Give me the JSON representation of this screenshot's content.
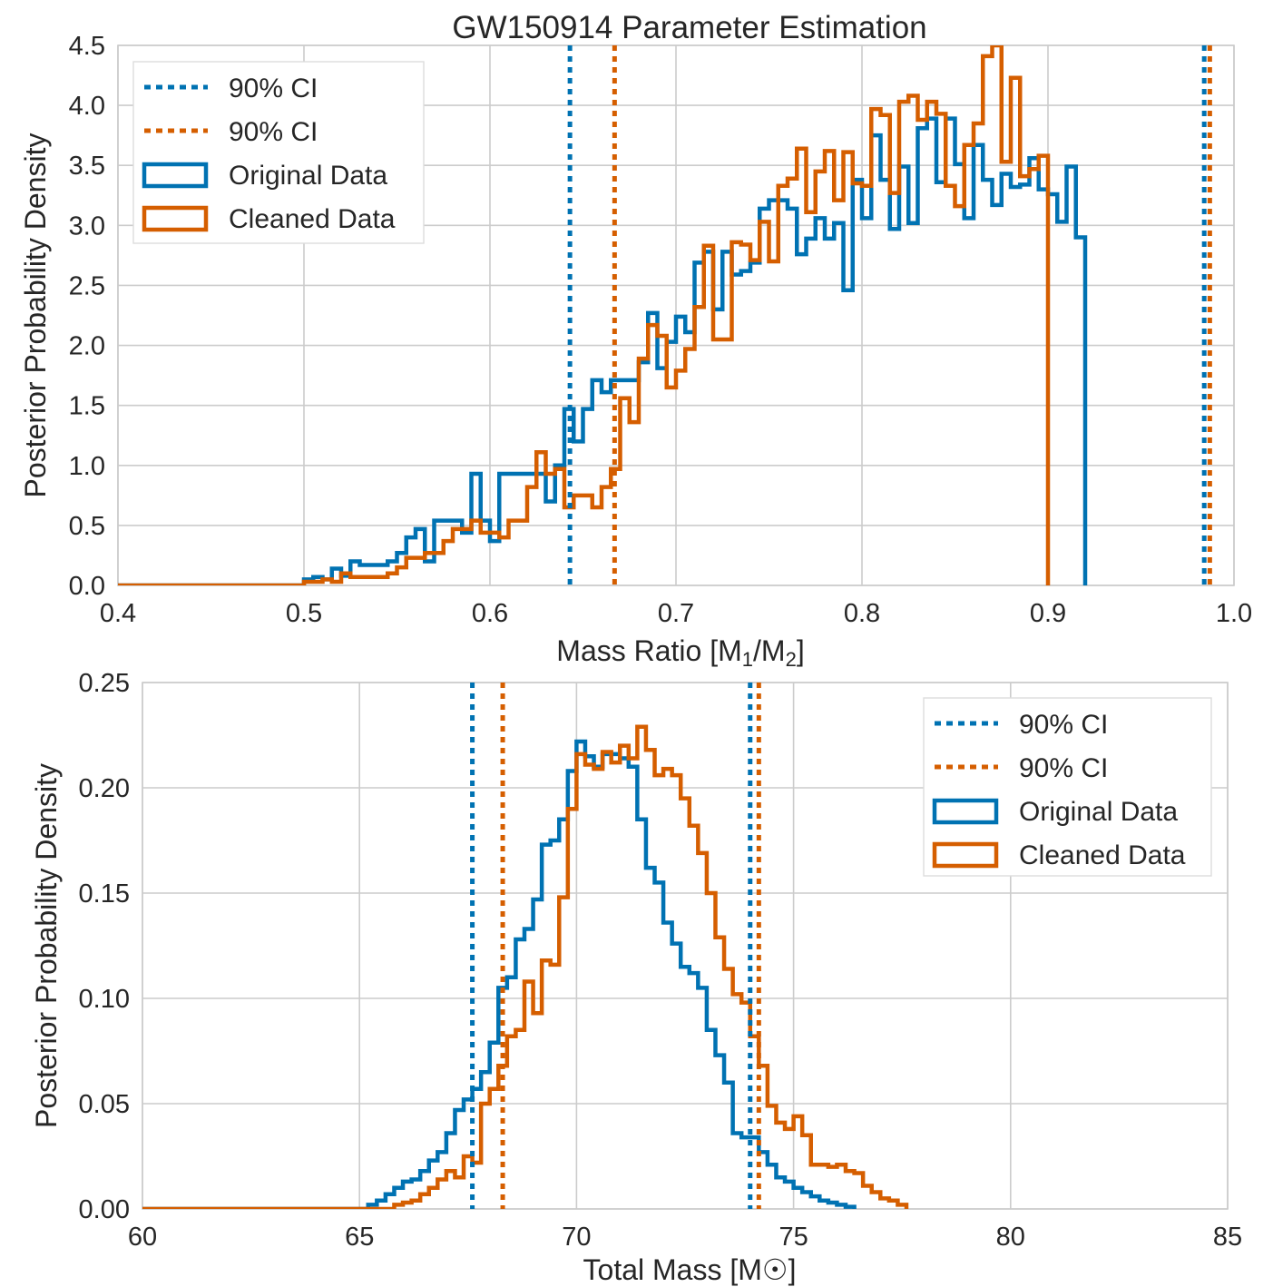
{
  "chart_data": [
    {
      "type": "histogram",
      "title": "GW150914 Parameter Estimation",
      "xlabel_parts": [
        "Mass Ratio [M",
        "1",
        "/M",
        "2",
        "]"
      ],
      "ylabel": "Posterior Probability Density",
      "xlim": [
        0.4,
        1.0
      ],
      "ylim": [
        0,
        4.5
      ],
      "xticks": [
        "0.4",
        "0.5",
        "0.6",
        "0.7",
        "0.8",
        "0.9",
        "1.0"
      ],
      "xtick_values": [
        0.4,
        0.5,
        0.6,
        0.7,
        0.8,
        0.9,
        1.0
      ],
      "yticks": [
        "0.0",
        "0.5",
        "1.0",
        "1.5",
        "2.0",
        "2.5",
        "3.0",
        "3.5",
        "4.0",
        "4.5"
      ],
      "ytick_values": [
        0,
        0.5,
        1.0,
        1.5,
        2.0,
        2.5,
        3.0,
        3.5,
        4.0,
        4.5
      ],
      "grid": true,
      "legend_position": "top-left",
      "legend": [
        {
          "label": "90% CI",
          "kind": "dotted",
          "color": "#0072b2"
        },
        {
          "label": "90% CI",
          "kind": "dotted",
          "color": "#d55e00"
        },
        {
          "label": "Original Data",
          "kind": "box",
          "color": "#0072b2"
        },
        {
          "label": "Cleaned Data",
          "kind": "box",
          "color": "#d55e00"
        }
      ],
      "ci_lines": [
        {
          "series": "Original Data",
          "values": [
            0.643,
            0.984
          ],
          "color": "#0072b2"
        },
        {
          "series": "Cleaned Data",
          "values": [
            0.667,
            0.987
          ],
          "color": "#d55e00"
        }
      ],
      "series": [
        {
          "name": "Original Data",
          "color": "#0072b2",
          "x_start": 0.5,
          "bin_width": 0.005,
          "values": [
            0.05,
            0.07,
            0.05,
            0.14,
            0.08,
            0.2,
            0.17,
            0.17,
            0.17,
            0.2,
            0.27,
            0.4,
            0.47,
            0.2,
            0.54,
            0.54,
            0.54,
            0.44,
            0.93,
            0.54,
            0.37,
            0.93,
            0.93,
            0.93,
            0.93,
            0.93,
            0.7,
            1.0,
            1.47,
            1.2,
            1.47,
            1.71,
            1.61,
            1.71,
            1.71,
            1.71,
            1.86,
            2.27,
            1.81,
            2.03,
            2.24,
            2.11,
            2.69,
            2.78,
            2.3,
            2.78,
            2.59,
            2.62,
            2.69,
            3.14,
            3.21,
            3.21,
            3.14,
            2.76,
            2.89,
            3.06,
            2.89,
            3.02,
            2.46,
            3.38,
            3.06,
            3.75,
            3.38,
            2.97,
            3.49,
            3.02,
            3.81,
            3.89,
            3.36,
            3.89,
            3.51,
            3.06,
            3.67,
            3.38,
            3.17,
            3.43,
            3.32,
            3.34,
            3.56,
            3.3,
            3.26,
            3.03,
            3.49,
            2.9
          ]
        },
        {
          "name": "Cleaned Data",
          "color": "#d55e00",
          "x_start": 0.5,
          "bin_width": 0.005,
          "values": [
            0.03,
            0.03,
            0.05,
            0.03,
            0.1,
            0.07,
            0.07,
            0.07,
            0.07,
            0.1,
            0.15,
            0.23,
            0.23,
            0.27,
            0.27,
            0.37,
            0.47,
            0.47,
            0.54,
            0.44,
            0.44,
            0.4,
            0.54,
            0.54,
            0.82,
            1.11,
            0.93,
            0.97,
            0.65,
            0.75,
            0.75,
            0.65,
            0.82,
            0.97,
            1.56,
            1.36,
            1.89,
            2.17,
            2.08,
            1.65,
            1.79,
            1.97,
            2.32,
            2.83,
            2.05,
            2.05,
            2.86,
            2.84,
            2.71,
            3.03,
            2.7,
            3.33,
            3.39,
            3.64,
            3.11,
            3.45,
            3.62,
            3.21,
            3.61,
            3.35,
            3.33,
            3.97,
            3.92,
            3.27,
            4.03,
            4.08,
            3.88,
            4.03,
            3.93,
            3.33,
            3.16,
            3.67,
            3.85,
            4.41,
            4.5,
            3.53,
            4.23,
            3.41,
            3.47,
            3.58
          ]
        }
      ]
    },
    {
      "type": "histogram",
      "title": "",
      "xlabel_parts": [
        "Total Mass [M",
        "☉",
        "]"
      ],
      "ylabel": "Posterior Probability Density",
      "xlim": [
        60,
        85
      ],
      "ylim": [
        0,
        0.25
      ],
      "xticks": [
        "60",
        "65",
        "70",
        "75",
        "80",
        "85"
      ],
      "xtick_values": [
        60,
        65,
        70,
        75,
        80,
        85
      ],
      "yticks": [
        "0.00",
        "0.05",
        "0.10",
        "0.15",
        "0.20",
        "0.25"
      ],
      "ytick_values": [
        0,
        0.05,
        0.1,
        0.15,
        0.2,
        0.25
      ],
      "grid": true,
      "legend_position": "top-right",
      "legend": [
        {
          "label": "90% CI",
          "kind": "dotted",
          "color": "#0072b2"
        },
        {
          "label": "90% CI",
          "kind": "dotted",
          "color": "#d55e00"
        },
        {
          "label": "Original Data",
          "kind": "box",
          "color": "#0072b2"
        },
        {
          "label": "Cleaned Data",
          "kind": "box",
          "color": "#d55e00"
        }
      ],
      "ci_lines": [
        {
          "series": "Original Data",
          "values": [
            67.6,
            74.0
          ],
          "color": "#0072b2"
        },
        {
          "series": "Cleaned Data",
          "values": [
            68.3,
            74.2
          ],
          "color": "#d55e00"
        }
      ],
      "series": [
        {
          "name": "Original Data",
          "color": "#0072b2",
          "x_start": 65.2,
          "bin_width": 0.2,
          "values": [
            0.002,
            0.004,
            0.007,
            0.01,
            0.013,
            0.014,
            0.018,
            0.023,
            0.027,
            0.036,
            0.047,
            0.052,
            0.057,
            0.065,
            0.079,
            0.105,
            0.11,
            0.128,
            0.133,
            0.147,
            0.173,
            0.175,
            0.185,
            0.208,
            0.222,
            0.215,
            0.21,
            0.216,
            0.216,
            0.214,
            0.21,
            0.185,
            0.162,
            0.155,
            0.136,
            0.126,
            0.115,
            0.112,
            0.105,
            0.085,
            0.073,
            0.06,
            0.036,
            0.034,
            0.034,
            0.027,
            0.021,
            0.015,
            0.013,
            0.01,
            0.008,
            0.006,
            0.004,
            0.003,
            0.002,
            0.001
          ]
        },
        {
          "name": "Cleaned Data",
          "color": "#d55e00",
          "x_start": 65.8,
          "bin_width": 0.2,
          "values": [
            0.002,
            0.003,
            0.004,
            0.007,
            0.01,
            0.014,
            0.018,
            0.015,
            0.025,
            0.022,
            0.05,
            0.057,
            0.068,
            0.082,
            0.085,
            0.108,
            0.093,
            0.118,
            0.116,
            0.148,
            0.19,
            0.216,
            0.211,
            0.209,
            0.217,
            0.212,
            0.22,
            0.214,
            0.229,
            0.218,
            0.206,
            0.209,
            0.206,
            0.195,
            0.182,
            0.169,
            0.15,
            0.129,
            0.114,
            0.102,
            0.098,
            0.082,
            0.068,
            0.049,
            0.041,
            0.038,
            0.044,
            0.035,
            0.021,
            0.021,
            0.02,
            0.021,
            0.018,
            0.017,
            0.011,
            0.008,
            0.005,
            0.004,
            0.002
          ]
        }
      ]
    }
  ]
}
